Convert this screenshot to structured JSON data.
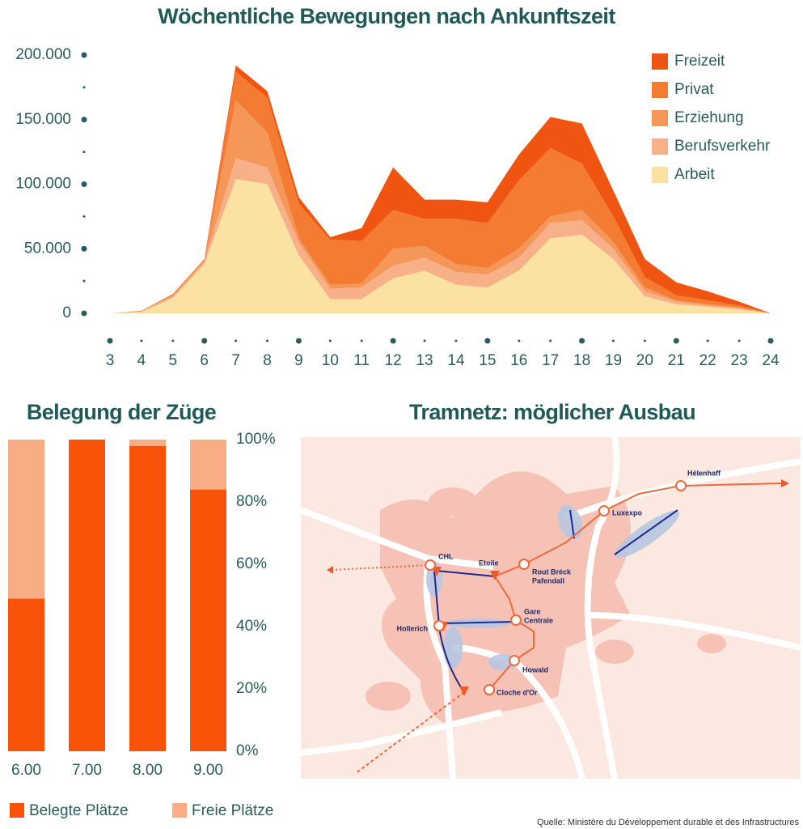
{
  "chart_data": [
    {
      "type": "stacked-area",
      "title": "Wöchentliche Bewegungen nach Ankunftszeit",
      "x": [
        3,
        4,
        5,
        6,
        7,
        8,
        9,
        10,
        11,
        12,
        13,
        14,
        15,
        16,
        17,
        18,
        19,
        20,
        21,
        22,
        23,
        24
      ],
      "xlim": [
        3,
        24
      ],
      "xticks": [
        3,
        4,
        5,
        6,
        7,
        8,
        9,
        10,
        11,
        12,
        13,
        14,
        15,
        16,
        17,
        18,
        19,
        20,
        21,
        22,
        23,
        24
      ],
      "ylim": [
        0,
        200000
      ],
      "yticks": [
        0,
        {
          "value": 50000,
          "label": "50.000"
        },
        {
          "value": 100000,
          "label": "100.000"
        },
        {
          "value": 150000,
          "label": "150.000"
        },
        {
          "value": 200000,
          "label": "200.000"
        }
      ],
      "legend": "top-right",
      "series": [
        {
          "name": "Arbeit",
          "color": "#fbe2a2",
          "values": [
            0,
            1000,
            12000,
            38000,
            104000,
            100000,
            45000,
            11000,
            11000,
            27000,
            33000,
            22000,
            20000,
            33000,
            58000,
            61000,
            42000,
            13000,
            7000,
            5000,
            3000,
            0
          ]
        },
        {
          "name": "Berufsverkehr",
          "color": "#f8b089",
          "values": [
            0,
            500,
            1000,
            2000,
            16000,
            13000,
            10000,
            8000,
            9000,
            10000,
            10000,
            10000,
            10000,
            10000,
            12000,
            11000,
            8000,
            4000,
            2000,
            1000,
            1000,
            0
          ]
        },
        {
          "name": "Erziehung",
          "color": "#f6975a",
          "values": [
            0,
            200,
            1000,
            1000,
            45000,
            27000,
            3000,
            3000,
            3000,
            13000,
            9000,
            6000,
            5000,
            7000,
            5000,
            8000,
            5000,
            3000,
            1000,
            1000,
            500,
            0
          ]
        },
        {
          "name": "Privat",
          "color": "#f47c32",
          "values": [
            0,
            300,
            1000,
            1000,
            22000,
            27000,
            27000,
            35000,
            33000,
            30000,
            21000,
            35000,
            35000,
            53000,
            53000,
            36000,
            20000,
            8000,
            4000,
            3000,
            1500,
            0
          ]
        },
        {
          "name": "Freizeit",
          "color": "#ef5510",
          "values": [
            0,
            0,
            0,
            0,
            5000,
            5000,
            5000,
            2000,
            10000,
            33000,
            15000,
            15000,
            16000,
            20000,
            24000,
            31000,
            20000,
            14000,
            10000,
            7000,
            3000,
            0
          ]
        }
      ]
    },
    {
      "type": "stacked-bar",
      "title": "Belegung der Züge",
      "categories": [
        "6.00",
        "7.00",
        "8.00",
        "9.00"
      ],
      "ylim": [
        0,
        100
      ],
      "yticks": [
        {
          "value": 0,
          "label": "0%"
        },
        {
          "value": 20,
          "label": "20%"
        },
        {
          "value": 40,
          "label": "40%"
        },
        {
          "value": 60,
          "label": "60%"
        },
        {
          "value": 80,
          "label": "80%"
        },
        {
          "value": 100,
          "label": "100%"
        }
      ],
      "legend": "bottom",
      "series": [
        {
          "name": "Belegte Plätze",
          "color": "#f9530a",
          "values": [
            49,
            100,
            98,
            84
          ]
        },
        {
          "name": "Freie Plätze",
          "color": "#f9ad85",
          "values": [
            51,
            0,
            2,
            16
          ]
        }
      ]
    }
  ],
  "map": {
    "title": "Tramnetz: möglicher Ausbau",
    "stations": [
      {
        "label": [
          "Hélenhaff"
        ]
      },
      {
        "label": [
          "Luxexpo"
        ]
      },
      {
        "label": [
          "CHL"
        ]
      },
      {
        "label": [
          "Etoile"
        ]
      },
      {
        "label": [
          "Rout Bréck",
          "Pafendall"
        ]
      },
      {
        "label": [
          "Gare",
          "Centrale"
        ]
      },
      {
        "label": [
          "Hollerich"
        ]
      },
      {
        "label": [
          "Howald"
        ]
      },
      {
        "label": [
          "Cloche d'Or"
        ]
      }
    ]
  },
  "source": "Quelle: Ministère du Développement durable et des Infrastructures"
}
